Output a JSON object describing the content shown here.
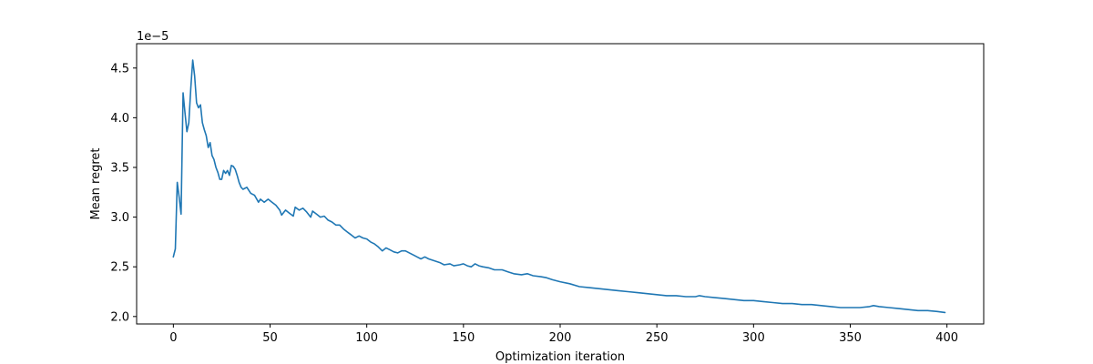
{
  "chart_data": {
    "type": "line",
    "title": "",
    "xlabel": "Optimization iteration",
    "ylabel": "Mean regret",
    "y_offset_label": "1e−5",
    "y_scale_exponent": -5,
    "xlim": [
      -19,
      419
    ],
    "ylim": [
      1.925,
      4.745
    ],
    "x_ticks": [
      0,
      50,
      100,
      150,
      200,
      250,
      300,
      350,
      400
    ],
    "x_tick_labels": [
      "0",
      "50",
      "100",
      "150",
      "200",
      "250",
      "300",
      "350",
      "400"
    ],
    "y_ticks": [
      2.0,
      2.5,
      3.0,
      3.5,
      4.0,
      4.5
    ],
    "y_tick_labels": [
      "2.0",
      "2.5",
      "3.0",
      "3.5",
      "4.0",
      "4.5"
    ],
    "grid": false,
    "legend": "none",
    "line_color": "#1f77b4",
    "series": [
      {
        "points": [
          [
            0,
            2.6
          ],
          [
            1,
            2.68
          ],
          [
            2,
            3.35
          ],
          [
            3,
            3.2
          ],
          [
            4,
            3.03
          ],
          [
            5,
            4.25
          ],
          [
            6,
            4.05
          ],
          [
            7,
            3.86
          ],
          [
            8,
            3.95
          ],
          [
            9,
            4.3
          ],
          [
            10,
            4.58
          ],
          [
            11,
            4.42
          ],
          [
            12,
            4.15
          ],
          [
            13,
            4.1
          ],
          [
            14,
            4.13
          ],
          [
            15,
            3.95
          ],
          [
            16,
            3.88
          ],
          [
            17,
            3.82
          ],
          [
            18,
            3.7
          ],
          [
            19,
            3.75
          ],
          [
            20,
            3.62
          ],
          [
            21,
            3.58
          ],
          [
            22,
            3.5
          ],
          [
            23,
            3.45
          ],
          [
            24,
            3.38
          ],
          [
            25,
            3.38
          ],
          [
            26,
            3.47
          ],
          [
            27,
            3.44
          ],
          [
            28,
            3.47
          ],
          [
            29,
            3.42
          ],
          [
            30,
            3.52
          ],
          [
            31,
            3.51
          ],
          [
            32,
            3.48
          ],
          [
            33,
            3.42
          ],
          [
            34,
            3.35
          ],
          [
            35,
            3.3
          ],
          [
            36,
            3.28
          ],
          [
            38,
            3.3
          ],
          [
            40,
            3.24
          ],
          [
            42,
            3.22
          ],
          [
            44,
            3.15
          ],
          [
            45,
            3.18
          ],
          [
            47,
            3.15
          ],
          [
            49,
            3.18
          ],
          [
            51,
            3.15
          ],
          [
            53,
            3.12
          ],
          [
            55,
            3.07
          ],
          [
            56,
            3.02
          ],
          [
            58,
            3.07
          ],
          [
            60,
            3.04
          ],
          [
            62,
            3.01
          ],
          [
            63,
            3.1
          ],
          [
            65,
            3.07
          ],
          [
            67,
            3.09
          ],
          [
            69,
            3.05
          ],
          [
            71,
            3.0
          ],
          [
            72,
            3.06
          ],
          [
            74,
            3.03
          ],
          [
            76,
            3.0
          ],
          [
            78,
            3.01
          ],
          [
            80,
            2.97
          ],
          [
            82,
            2.95
          ],
          [
            84,
            2.92
          ],
          [
            86,
            2.92
          ],
          [
            88,
            2.88
          ],
          [
            90,
            2.85
          ],
          [
            92,
            2.82
          ],
          [
            94,
            2.79
          ],
          [
            96,
            2.81
          ],
          [
            98,
            2.79
          ],
          [
            100,
            2.78
          ],
          [
            102,
            2.75
          ],
          [
            104,
            2.73
          ],
          [
            106,
            2.7
          ],
          [
            108,
            2.66
          ],
          [
            110,
            2.69
          ],
          [
            112,
            2.67
          ],
          [
            114,
            2.65
          ],
          [
            116,
            2.64
          ],
          [
            118,
            2.66
          ],
          [
            120,
            2.66
          ],
          [
            122,
            2.64
          ],
          [
            124,
            2.62
          ],
          [
            126,
            2.6
          ],
          [
            128,
            2.58
          ],
          [
            130,
            2.6
          ],
          [
            132,
            2.58
          ],
          [
            135,
            2.56
          ],
          [
            138,
            2.54
          ],
          [
            140,
            2.52
          ],
          [
            143,
            2.53
          ],
          [
            145,
            2.51
          ],
          [
            148,
            2.52
          ],
          [
            150,
            2.53
          ],
          [
            152,
            2.51
          ],
          [
            154,
            2.5
          ],
          [
            156,
            2.53
          ],
          [
            158,
            2.51
          ],
          [
            160,
            2.5
          ],
          [
            163,
            2.49
          ],
          [
            166,
            2.47
          ],
          [
            170,
            2.47
          ],
          [
            173,
            2.45
          ],
          [
            176,
            2.43
          ],
          [
            180,
            2.42
          ],
          [
            183,
            2.43
          ],
          [
            186,
            2.41
          ],
          [
            190,
            2.4
          ],
          [
            193,
            2.39
          ],
          [
            196,
            2.37
          ],
          [
            200,
            2.35
          ],
          [
            205,
            2.33
          ],
          [
            210,
            2.3
          ],
          [
            215,
            2.29
          ],
          [
            220,
            2.28
          ],
          [
            225,
            2.27
          ],
          [
            230,
            2.26
          ],
          [
            235,
            2.25
          ],
          [
            240,
            2.24
          ],
          [
            245,
            2.23
          ],
          [
            250,
            2.22
          ],
          [
            255,
            2.21
          ],
          [
            260,
            2.21
          ],
          [
            265,
            2.2
          ],
          [
            270,
            2.2
          ],
          [
            272,
            2.21
          ],
          [
            275,
            2.2
          ],
          [
            280,
            2.19
          ],
          [
            285,
            2.18
          ],
          [
            290,
            2.17
          ],
          [
            295,
            2.16
          ],
          [
            300,
            2.16
          ],
          [
            305,
            2.15
          ],
          [
            310,
            2.14
          ],
          [
            315,
            2.13
          ],
          [
            320,
            2.13
          ],
          [
            325,
            2.12
          ],
          [
            330,
            2.12
          ],
          [
            335,
            2.11
          ],
          [
            340,
            2.1
          ],
          [
            345,
            2.09
          ],
          [
            350,
            2.09
          ],
          [
            355,
            2.09
          ],
          [
            360,
            2.1
          ],
          [
            362,
            2.11
          ],
          [
            365,
            2.1
          ],
          [
            370,
            2.09
          ],
          [
            375,
            2.08
          ],
          [
            380,
            2.07
          ],
          [
            385,
            2.06
          ],
          [
            390,
            2.06
          ],
          [
            395,
            2.05
          ],
          [
            399,
            2.04
          ]
        ]
      }
    ]
  }
}
